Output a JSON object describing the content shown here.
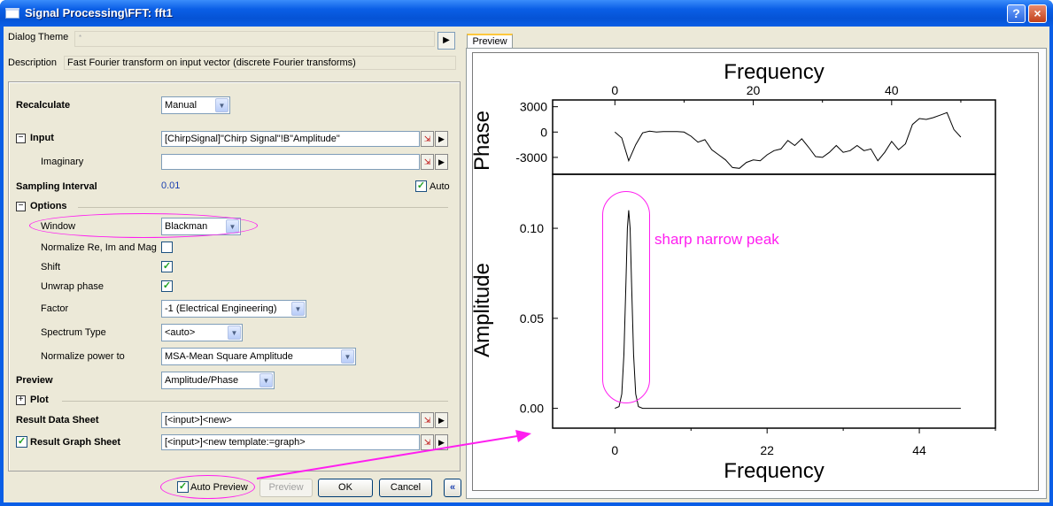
{
  "window": {
    "title": "Signal Processing\\FFT: fft1",
    "help_label": "?",
    "close_label": "×"
  },
  "theme": {
    "label": "Dialog Theme",
    "value": "*",
    "arrow": "▶"
  },
  "description": {
    "label": "Description",
    "value": "Fast Fourier transform on input vector (discrete Fourier transforms)"
  },
  "tree": {
    "recalculate": {
      "label": "Recalculate",
      "value": "Manual"
    },
    "input": {
      "toggle": "−",
      "label": "Input",
      "value": "[ChirpSignal]\"Chirp Signal\"!B\"Amplitude\""
    },
    "imaginary": {
      "label": "Imaginary",
      "value": ""
    },
    "sampling": {
      "label": "Sampling Interval",
      "value": "0.01",
      "auto_label": "Auto",
      "auto_checked": "✓"
    },
    "options": {
      "toggle": "−",
      "label": "Options"
    },
    "window": {
      "label": "Window",
      "value": "Blackman"
    },
    "normalize": {
      "label": "Normalize Re, Im and Mag",
      "checked": ""
    },
    "shift": {
      "label": "Shift",
      "checked": "✓"
    },
    "unwrap": {
      "label": "Unwrap phase",
      "checked": "✓"
    },
    "factor": {
      "label": "Factor",
      "value": "-1 (Electrical Engineering)"
    },
    "spectrum": {
      "label": "Spectrum Type",
      "value": "<auto>"
    },
    "normpower": {
      "label": "Normalize power to",
      "value": "MSA-Mean Square Amplitude"
    },
    "preview": {
      "label": "Preview",
      "value": "Amplitude/Phase"
    },
    "plot": {
      "toggle": "+",
      "label": "Plot"
    },
    "result_data": {
      "label": "Result Data Sheet",
      "value": "[<input>]<new>"
    },
    "result_graph": {
      "label": "Result Graph Sheet",
      "value": "[<input>]<new template:=graph>",
      "checked": "✓"
    }
  },
  "buttons": {
    "auto_preview": "Auto Preview",
    "auto_preview_checked": "✓",
    "preview": "Preview",
    "ok": "OK",
    "cancel": "Cancel",
    "collapse": "«"
  },
  "preview_tab": "Preview",
  "annotation": {
    "text": "sharp narrow peak",
    "color": "#ff1ef0"
  },
  "chart_data": [
    {
      "type": "line",
      "ylabel": "Phase",
      "xlabel": "Frequency",
      "x_ticks": [
        0,
        20,
        40
      ],
      "y_ticks": [
        3000,
        0,
        -3000
      ],
      "xlim": [
        -9,
        55
      ],
      "ylim": [
        -5000,
        3800
      ],
      "series": [
        {
          "x": [
            0,
            1,
            2,
            3,
            4,
            5,
            6,
            7,
            8,
            9,
            10,
            11,
            12,
            13,
            14,
            15,
            16,
            17,
            18,
            19,
            20,
            21,
            22,
            23,
            24,
            25,
            26,
            27,
            28,
            29,
            30,
            31,
            32,
            33,
            34,
            35,
            36,
            37,
            38,
            39,
            40,
            41,
            42,
            43,
            44,
            45,
            46,
            47,
            48,
            49,
            50
          ],
          "y": [
            0,
            -700,
            -3400,
            -1500,
            -100,
            100,
            0,
            50,
            50,
            60,
            0,
            -500,
            -1200,
            -900,
            -2100,
            -2700,
            -3300,
            -4200,
            -4300,
            -3600,
            -3300,
            -3400,
            -2700,
            -2200,
            -2000,
            -1000,
            -1600,
            -800,
            -1800,
            -2900,
            -3000,
            -2400,
            -1600,
            -2400,
            -2200,
            -1600,
            -2200,
            -2000,
            -3400,
            -2400,
            -1100,
            -2100,
            -1400,
            900,
            1600,
            1500,
            1700,
            2000,
            2300,
            300,
            -600
          ]
        }
      ]
    },
    {
      "type": "line",
      "ylabel": "Amplitude",
      "xlabel": "Frequency",
      "x_ticks": [
        0,
        22,
        44
      ],
      "y_ticks": [
        0.0,
        0.05,
        0.1
      ],
      "y_tick_labels": [
        "0.00",
        "0.05",
        "0.10"
      ],
      "xlim": [
        -9,
        55
      ],
      "ylim": [
        -0.011,
        0.13
      ],
      "series": [
        {
          "x": [
            0,
            0.6,
            1.0,
            1.3,
            1.6,
            1.8,
            2.0,
            2.2,
            2.4,
            2.7,
            3.0,
            3.4,
            4.0,
            6.0,
            10,
            20,
            30,
            40,
            50
          ],
          "y": [
            0,
            0.001,
            0.008,
            0.03,
            0.07,
            0.1,
            0.11,
            0.1,
            0.07,
            0.03,
            0.008,
            0.001,
            0,
            0,
            0,
            0,
            0,
            0,
            0
          ]
        }
      ]
    }
  ]
}
